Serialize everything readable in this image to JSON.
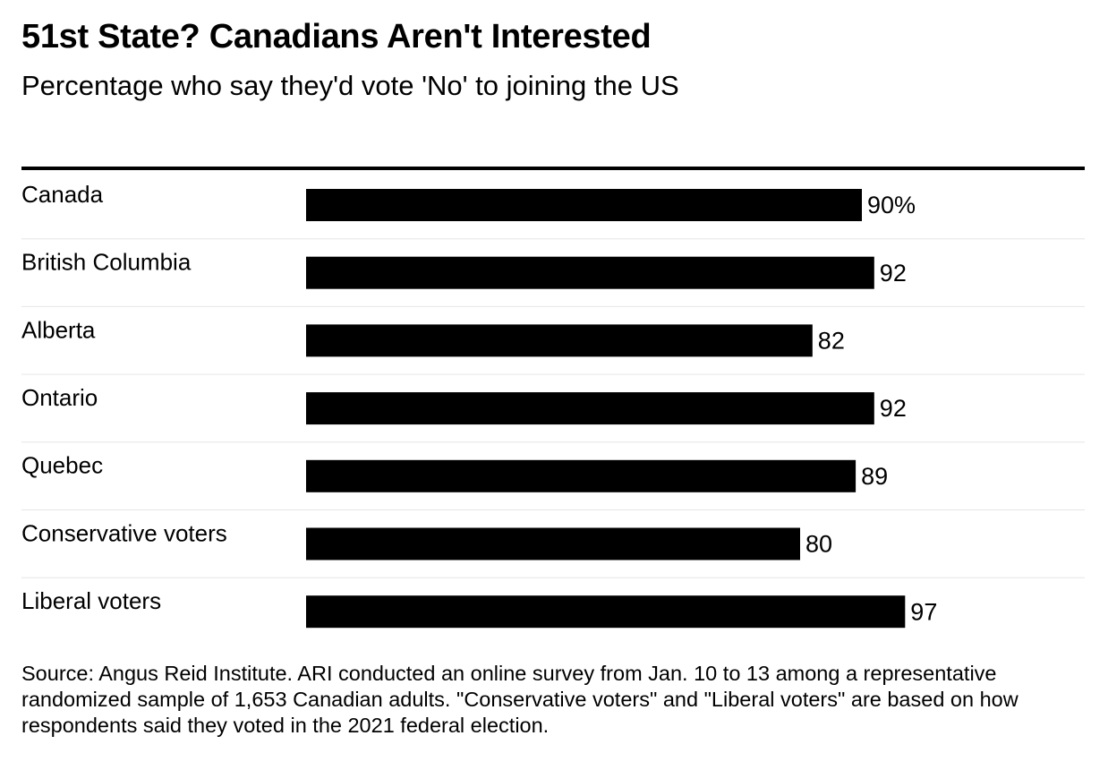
{
  "chart_data": {
    "type": "bar",
    "orientation": "horizontal",
    "title": "51st State? Canadians Aren't Interested",
    "subtitle": "Percentage who say they'd vote 'No' to joining the US",
    "categories": [
      "Canada",
      "British Columbia",
      "Alberta",
      "Ontario",
      "Quebec",
      "Conservative voters",
      "Liberal voters"
    ],
    "values": [
      90,
      92,
      82,
      92,
      89,
      80,
      97
    ],
    "data_labels": [
      "90%",
      "92",
      "82",
      "92",
      "89",
      "80",
      "97"
    ],
    "xlim": [
      0,
      100
    ],
    "grid": false,
    "legend": "none",
    "bar_color": "#000000",
    "separator_color": "#e6e6e6",
    "source": "Source: Angus Reid Institute. ARI conducted an online survey from Jan. 10 to 13 among a representative randomized sample of 1,653 Canadian adults. \"Conservative voters\" and \"Liberal voters\" are based on how respondents said they voted in the 2021 federal election."
  }
}
